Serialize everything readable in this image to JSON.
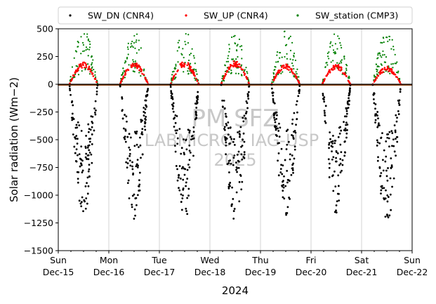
{
  "chart_data": {
    "type": "scatter",
    "ylabel": "Solar radiation (Wm−2)",
    "xlabel": "2024",
    "ylim": [
      -1500,
      500
    ],
    "y_ticks": [
      500,
      250,
      0,
      -250,
      -500,
      -750,
      -1000,
      -1250,
      -1500
    ],
    "y_tick_labels": [
      "500",
      "250",
      "0",
      "−250",
      "−500",
      "−750",
      "−1000",
      "−1250",
      "−1500"
    ],
    "x_range_days": [
      "2024-12-15",
      "2024-12-22"
    ],
    "x_ticks": [
      {
        "day": "Sun",
        "date": "Dec-15"
      },
      {
        "day": "Mon",
        "date": "Dec-16"
      },
      {
        "day": "Tue",
        "date": "Dec-17"
      },
      {
        "day": "Wed",
        "date": "Dec-18"
      },
      {
        "day": "Thu",
        "date": "Dec-19"
      },
      {
        "day": "Fri",
        "date": "Dec-20"
      },
      {
        "day": "Sat",
        "date": "Dec-21"
      },
      {
        "day": "Sun",
        "date": "Dec-22"
      }
    ],
    "grid": "vertical",
    "legend_position": "top",
    "watermark": {
      "line1": "PM SFZ",
      "line2": "LABMICRO - IAG-USP",
      "line3": "2025"
    },
    "series": [
      {
        "name": "SW_DN (CNR4)",
        "color": "#000000",
        "approx_daily_min": [
          -1180,
          -1220,
          -1250,
          -1260,
          -1180,
          -1180,
          -1260
        ]
      },
      {
        "name": "SW_UP (CNR4)",
        "color": "#ff0000",
        "approx_daily_max": [
          200,
          200,
          210,
          210,
          180,
          180,
          160
        ]
      },
      {
        "name": "SW_station (CMP3)",
        "color": "#008000",
        "approx_daily_max": [
          500,
          500,
          500,
          480,
          500,
          480,
          500
        ]
      }
    ]
  }
}
